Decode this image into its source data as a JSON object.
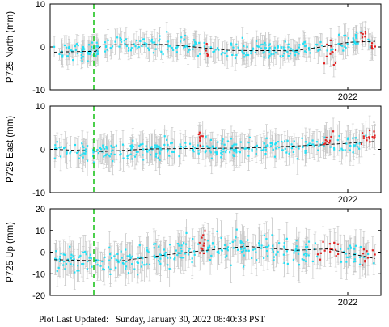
{
  "chart_data": [
    {
      "type": "scatter",
      "ylabel": "P725 North (mm)",
      "ylim": [
        -10,
        10
      ],
      "yticks": [
        -10,
        0,
        10
      ],
      "xtick_label": "2022",
      "grid": false,
      "marker_event_line": "green-dashed",
      "colors": {
        "normal": "#22e0f5",
        "recent": "#e02020",
        "error": "#c8c8c8",
        "trend": "#000000",
        "event": "#1fc41f"
      },
      "series_description": "daily position residuals with error bars, dashed trend line",
      "noise": 1.5,
      "err": 2.2,
      "trend": [
        [
          0.0,
          -1.2
        ],
        [
          0.13,
          -1.0
        ],
        [
          0.15,
          0.5
        ],
        [
          0.35,
          0.6
        ],
        [
          0.55,
          -0.8
        ],
        [
          0.75,
          -0.9
        ],
        [
          0.84,
          0.1
        ],
        [
          0.92,
          1.1
        ],
        [
          1.0,
          1.3
        ]
      ],
      "red_segments": [
        [
          0.47,
          0.48,
          -0.8
        ],
        [
          0.84,
          0.88,
          -2.3
        ],
        [
          0.955,
          0.975,
          2.5
        ],
        [
          0.985,
          1.0,
          0.2
        ]
      ]
    },
    {
      "type": "scatter",
      "ylabel": "P725 East (mm)",
      "ylim": [
        -10,
        10
      ],
      "yticks": [
        -10,
        0,
        10
      ],
      "xtick_label": "2022",
      "grid": false,
      "noise": 1.5,
      "err": 2.6,
      "trend": [
        [
          0.0,
          0.0
        ],
        [
          0.15,
          -0.5
        ],
        [
          0.3,
          0.1
        ],
        [
          0.6,
          0.3
        ],
        [
          0.85,
          1.1
        ],
        [
          1.0,
          1.8
        ]
      ],
      "red_segments": [
        [
          0.45,
          0.47,
          2.8
        ],
        [
          0.84,
          0.87,
          2.2
        ],
        [
          0.955,
          1.0,
          3.0
        ]
      ]
    },
    {
      "type": "scatter",
      "ylabel": "P725 Up (mm)",
      "ylim": [
        -20,
        20
      ],
      "yticks": [
        -20,
        -10,
        0,
        10,
        20
      ],
      "xtick_label": "2022",
      "grid": false,
      "noise": 4.2,
      "err": 6.0,
      "trend": [
        [
          0.0,
          -3.5
        ],
        [
          0.2,
          -4.2
        ],
        [
          0.4,
          -0.3
        ],
        [
          0.6,
          2.7
        ],
        [
          0.75,
          0.8
        ],
        [
          0.85,
          1.5
        ],
        [
          1.0,
          -3.0
        ]
      ],
      "red_segments": [
        [
          0.45,
          0.47,
          5.0
        ],
        [
          0.82,
          0.89,
          1.0
        ],
        [
          0.955,
          1.0,
          -3.0
        ]
      ]
    }
  ],
  "footer": {
    "label": "Plot Last Updated:",
    "datetime": "Sunday, January 30, 2022 08:40:33 PST"
  }
}
